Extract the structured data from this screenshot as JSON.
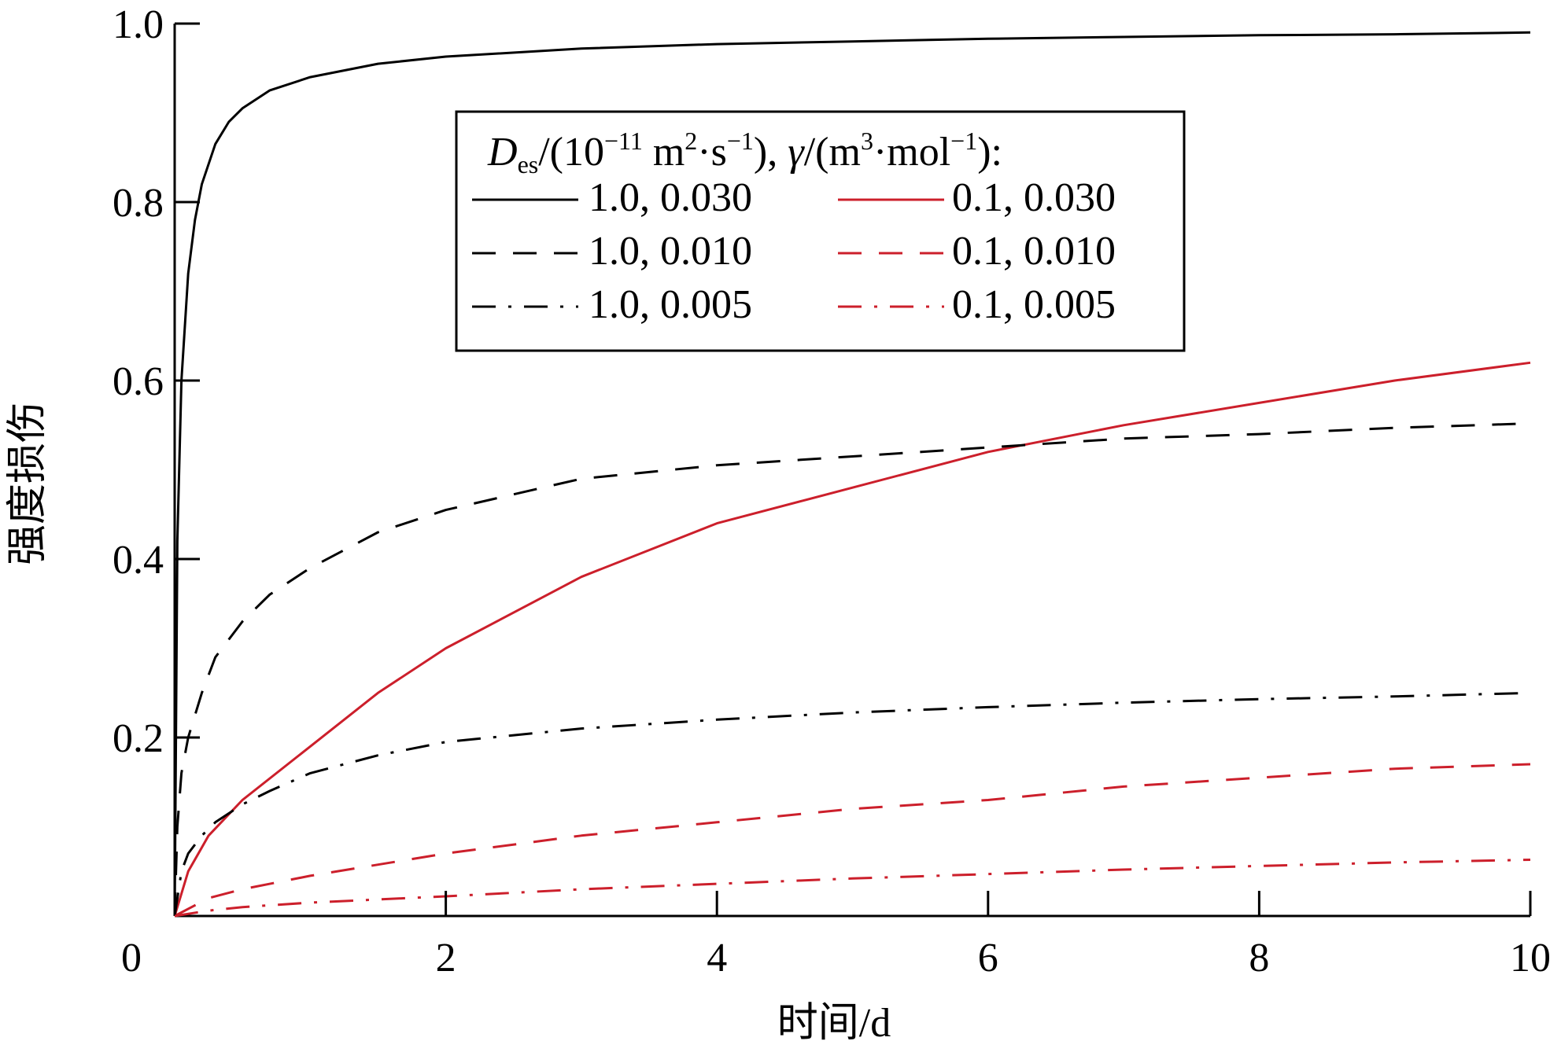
{
  "chart_data": {
    "type": "line",
    "xlabel": "时间/d",
    "ylabel": "强度损伤",
    "xlim": [
      0,
      10
    ],
    "ylim": [
      0,
      1.0
    ],
    "x_ticks": [
      0,
      2,
      4,
      6,
      8,
      10
    ],
    "x_tick_labels": [
      "0",
      "2",
      "4",
      "6",
      "8",
      "10"
    ],
    "y_ticks": [
      0.2,
      0.4,
      0.6,
      0.8,
      1.0
    ],
    "y_tick_labels": [
      "0.2",
      "0.4",
      "0.6",
      "0.8",
      "1.0"
    ],
    "grid": false,
    "legend": {
      "placement": "top-center",
      "title": {
        "D": "D",
        "es": "es",
        "part1": "/(10",
        "exp1": "−11",
        "part2": " m",
        "exp2": "2",
        "part3": "·s",
        "exp3": "−1",
        "part4": "), ",
        "gamma": "γ",
        "part5": "/(m",
        "exp4": "3",
        "part6": "·mol",
        "exp5": "−1",
        "part7": "):"
      }
    },
    "colors": {
      "black": "#000000",
      "red": "#cc1f2b"
    },
    "series": [
      {
        "name": "1.0, 0.030",
        "color": "#000000",
        "dash": "solid",
        "x": [
          0,
          0.02,
          0.05,
          0.1,
          0.15,
          0.2,
          0.3,
          0.4,
          0.5,
          0.7,
          1,
          1.5,
          2,
          3,
          4,
          5,
          6,
          7,
          8,
          9,
          10
        ],
        "y": [
          0,
          0.42,
          0.6,
          0.72,
          0.78,
          0.82,
          0.865,
          0.89,
          0.905,
          0.925,
          0.94,
          0.955,
          0.963,
          0.972,
          0.977,
          0.98,
          0.983,
          0.985,
          0.987,
          0.988,
          0.99
        ]
      },
      {
        "name": "0.1, 0.030",
        "color": "#cc1f2b",
        "dash": "solid",
        "x": [
          0,
          0.1,
          0.25,
          0.5,
          1,
          1.5,
          2,
          3,
          4,
          5,
          6,
          7,
          8,
          9,
          10
        ],
        "y": [
          0,
          0.05,
          0.09,
          0.13,
          0.19,
          0.25,
          0.3,
          0.38,
          0.44,
          0.48,
          0.52,
          0.55,
          0.575,
          0.6,
          0.62
        ]
      },
      {
        "name": "1.0, 0.010",
        "color": "#000000",
        "dash": "dashed",
        "x": [
          0,
          0.02,
          0.05,
          0.1,
          0.2,
          0.3,
          0.5,
          0.7,
          1,
          1.5,
          2,
          3,
          4,
          5,
          6,
          7,
          8,
          9,
          10
        ],
        "y": [
          0,
          0.1,
          0.16,
          0.2,
          0.25,
          0.29,
          0.33,
          0.36,
          0.39,
          0.43,
          0.455,
          0.49,
          0.505,
          0.515,
          0.525,
          0.535,
          0.54,
          0.547,
          0.552
        ]
      },
      {
        "name": "0.1, 0.010",
        "color": "#cc1f2b",
        "dash": "dashed",
        "x": [
          0,
          0.25,
          0.5,
          1,
          2,
          3,
          4,
          5,
          6,
          7,
          8,
          9,
          10
        ],
        "y": [
          0,
          0.02,
          0.03,
          0.045,
          0.07,
          0.09,
          0.105,
          0.12,
          0.13,
          0.145,
          0.155,
          0.165,
          0.17
        ]
      },
      {
        "name": "1.0, 0.005",
        "color": "#000000",
        "dash": "dashdot",
        "x": [
          0,
          0.05,
          0.1,
          0.2,
          0.3,
          0.5,
          0.7,
          1,
          1.5,
          2,
          3,
          4,
          5,
          6,
          7,
          8,
          9,
          10
        ],
        "y": [
          0,
          0.05,
          0.07,
          0.09,
          0.105,
          0.125,
          0.14,
          0.16,
          0.18,
          0.195,
          0.21,
          0.22,
          0.228,
          0.234,
          0.239,
          0.243,
          0.246,
          0.25
        ]
      },
      {
        "name": "0.1, 0.005",
        "color": "#cc1f2b",
        "dash": "dashdot",
        "x": [
          0,
          0.25,
          0.5,
          1,
          2,
          3,
          4,
          5,
          6,
          7,
          8,
          9,
          10
        ],
        "y": [
          0,
          0.006,
          0.01,
          0.015,
          0.022,
          0.03,
          0.036,
          0.042,
          0.047,
          0.052,
          0.056,
          0.06,
          0.063
        ]
      }
    ]
  }
}
